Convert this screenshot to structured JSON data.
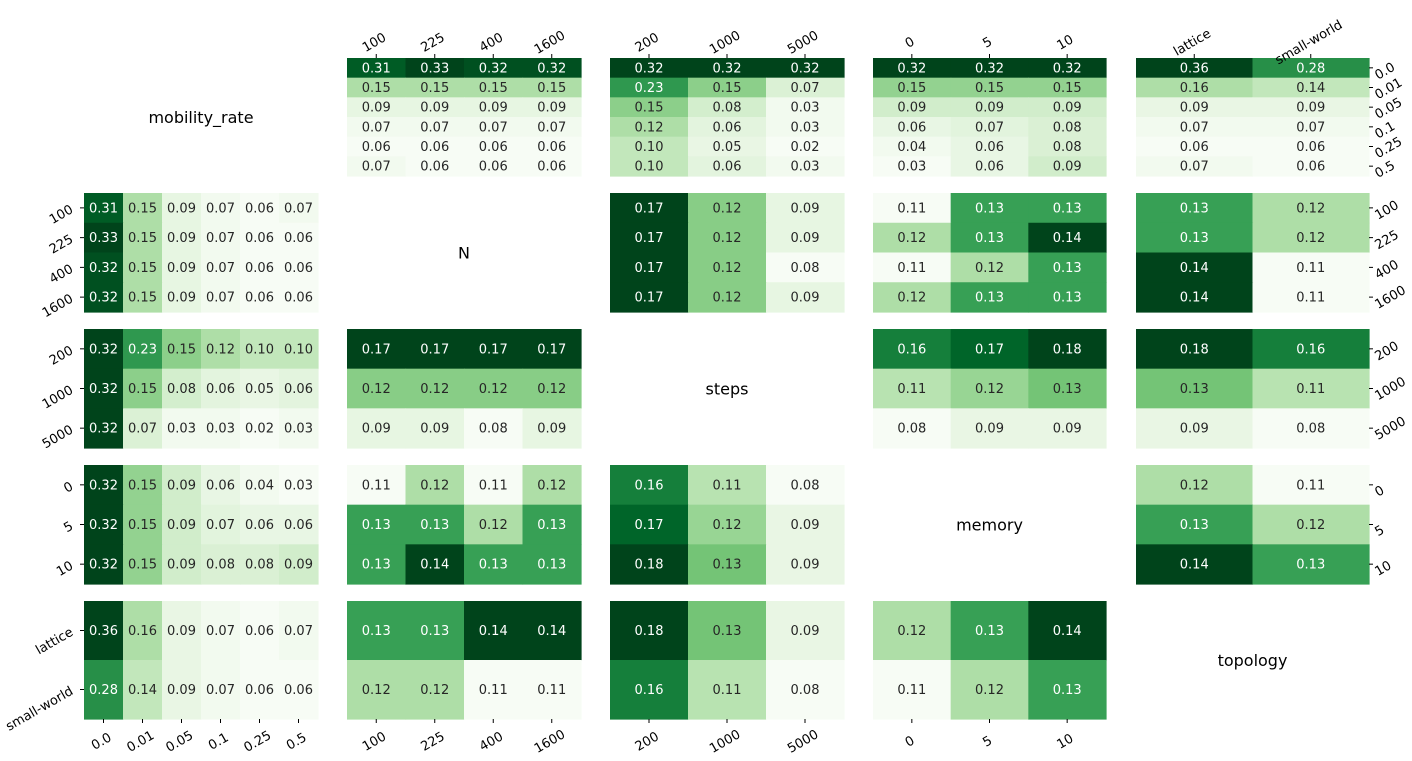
{
  "chart_data": {
    "type": "heatmap",
    "colormap": "Greens",
    "variables": [
      {
        "name": "mobility_rate",
        "levels": [
          "0.0",
          "0.01",
          "0.05",
          "0.1",
          "0.25",
          "0.5"
        ]
      },
      {
        "name": "N",
        "levels": [
          "100",
          "225",
          "400",
          "1600"
        ]
      },
      {
        "name": "steps",
        "levels": [
          "200",
          "1000",
          "5000"
        ]
      },
      {
        "name": "memory",
        "levels": [
          "0",
          "5",
          "10"
        ]
      },
      {
        "name": "topology",
        "levels": [
          "lattice",
          "small-world"
        ]
      }
    ],
    "panels": [
      {
        "row": 0,
        "col": 1,
        "values": [
          [
            "0.31",
            "0.33",
            "0.32",
            "0.32"
          ],
          [
            "0.15",
            "0.15",
            "0.15",
            "0.15"
          ],
          [
            "0.09",
            "0.09",
            "0.09",
            "0.09"
          ],
          [
            "0.07",
            "0.07",
            "0.07",
            "0.07"
          ],
          [
            "0.06",
            "0.06",
            "0.06",
            "0.06"
          ],
          [
            "0.07",
            "0.06",
            "0.06",
            "0.06"
          ]
        ]
      },
      {
        "row": 0,
        "col": 2,
        "values": [
          [
            "0.32",
            "0.32",
            "0.32"
          ],
          [
            "0.23",
            "0.15",
            "0.07"
          ],
          [
            "0.15",
            "0.08",
            "0.03"
          ],
          [
            "0.12",
            "0.06",
            "0.03"
          ],
          [
            "0.10",
            "0.05",
            "0.02"
          ],
          [
            "0.10",
            "0.06",
            "0.03"
          ]
        ]
      },
      {
        "row": 0,
        "col": 3,
        "values": [
          [
            "0.32",
            "0.32",
            "0.32"
          ],
          [
            "0.15",
            "0.15",
            "0.15"
          ],
          [
            "0.09",
            "0.09",
            "0.09"
          ],
          [
            "0.06",
            "0.07",
            "0.08"
          ],
          [
            "0.04",
            "0.06",
            "0.08"
          ],
          [
            "0.03",
            "0.06",
            "0.09"
          ]
        ]
      },
      {
        "row": 0,
        "col": 4,
        "values": [
          [
            "0.36",
            "0.28"
          ],
          [
            "0.16",
            "0.14"
          ],
          [
            "0.09",
            "0.09"
          ],
          [
            "0.07",
            "0.07"
          ],
          [
            "0.06",
            "0.06"
          ],
          [
            "0.07",
            "0.06"
          ]
        ]
      },
      {
        "row": 1,
        "col": 0,
        "values": [
          [
            "0.31",
            "0.15",
            "0.09",
            "0.07",
            "0.06",
            "0.07"
          ],
          [
            "0.33",
            "0.15",
            "0.09",
            "0.07",
            "0.06",
            "0.06"
          ],
          [
            "0.32",
            "0.15",
            "0.09",
            "0.07",
            "0.06",
            "0.06"
          ],
          [
            "0.32",
            "0.15",
            "0.09",
            "0.07",
            "0.06",
            "0.06"
          ]
        ]
      },
      {
        "row": 1,
        "col": 2,
        "values": [
          [
            "0.17",
            "0.12",
            "0.09"
          ],
          [
            "0.17",
            "0.12",
            "0.09"
          ],
          [
            "0.17",
            "0.12",
            "0.08"
          ],
          [
            "0.17",
            "0.12",
            "0.09"
          ]
        ]
      },
      {
        "row": 1,
        "col": 3,
        "values": [
          [
            "0.11",
            "0.13",
            "0.13"
          ],
          [
            "0.12",
            "0.13",
            "0.14"
          ],
          [
            "0.11",
            "0.12",
            "0.13"
          ],
          [
            "0.12",
            "0.13",
            "0.13"
          ]
        ]
      },
      {
        "row": 1,
        "col": 4,
        "values": [
          [
            "0.13",
            "0.12"
          ],
          [
            "0.13",
            "0.12"
          ],
          [
            "0.14",
            "0.11"
          ],
          [
            "0.14",
            "0.11"
          ]
        ]
      },
      {
        "row": 2,
        "col": 0,
        "values": [
          [
            "0.32",
            "0.23",
            "0.15",
            "0.12",
            "0.10",
            "0.10"
          ],
          [
            "0.32",
            "0.15",
            "0.08",
            "0.06",
            "0.05",
            "0.06"
          ],
          [
            "0.32",
            "0.07",
            "0.03",
            "0.03",
            "0.02",
            "0.03"
          ]
        ]
      },
      {
        "row": 2,
        "col": 1,
        "values": [
          [
            "0.17",
            "0.17",
            "0.17",
            "0.17"
          ],
          [
            "0.12",
            "0.12",
            "0.12",
            "0.12"
          ],
          [
            "0.09",
            "0.09",
            "0.08",
            "0.09"
          ]
        ]
      },
      {
        "row": 2,
        "col": 3,
        "values": [
          [
            "0.16",
            "0.17",
            "0.18"
          ],
          [
            "0.11",
            "0.12",
            "0.13"
          ],
          [
            "0.08",
            "0.09",
            "0.09"
          ]
        ]
      },
      {
        "row": 2,
        "col": 4,
        "values": [
          [
            "0.18",
            "0.16"
          ],
          [
            "0.13",
            "0.11"
          ],
          [
            "0.09",
            "0.08"
          ]
        ]
      },
      {
        "row": 3,
        "col": 0,
        "values": [
          [
            "0.32",
            "0.15",
            "0.09",
            "0.06",
            "0.04",
            "0.03"
          ],
          [
            "0.32",
            "0.15",
            "0.09",
            "0.07",
            "0.06",
            "0.06"
          ],
          [
            "0.32",
            "0.15",
            "0.09",
            "0.08",
            "0.08",
            "0.09"
          ]
        ]
      },
      {
        "row": 3,
        "col": 1,
        "values": [
          [
            "0.11",
            "0.12",
            "0.11",
            "0.12"
          ],
          [
            "0.13",
            "0.13",
            "0.12",
            "0.13"
          ],
          [
            "0.13",
            "0.14",
            "0.13",
            "0.13"
          ]
        ]
      },
      {
        "row": 3,
        "col": 2,
        "values": [
          [
            "0.16",
            "0.11",
            "0.08"
          ],
          [
            "0.17",
            "0.12",
            "0.09"
          ],
          [
            "0.18",
            "0.13",
            "0.09"
          ]
        ]
      },
      {
        "row": 3,
        "col": 4,
        "values": [
          [
            "0.12",
            "0.11"
          ],
          [
            "0.13",
            "0.12"
          ],
          [
            "0.14",
            "0.13"
          ]
        ]
      },
      {
        "row": 4,
        "col": 0,
        "values": [
          [
            "0.36",
            "0.16",
            "0.09",
            "0.07",
            "0.06",
            "0.07"
          ],
          [
            "0.28",
            "0.14",
            "0.09",
            "0.07",
            "0.06",
            "0.06"
          ]
        ]
      },
      {
        "row": 4,
        "col": 1,
        "values": [
          [
            "0.13",
            "0.13",
            "0.14",
            "0.14"
          ],
          [
            "0.12",
            "0.12",
            "0.11",
            "0.11"
          ]
        ]
      },
      {
        "row": 4,
        "col": 2,
        "values": [
          [
            "0.18",
            "0.13",
            "0.09"
          ],
          [
            "0.16",
            "0.11",
            "0.08"
          ]
        ]
      },
      {
        "row": 4,
        "col": 3,
        "values": [
          [
            "0.12",
            "0.13",
            "0.14"
          ],
          [
            "0.11",
            "0.12",
            "0.13"
          ]
        ]
      }
    ],
    "colors": {
      "light": "#f7fcf5",
      "dark": "#00441b",
      "text_dark": "#262626",
      "text_light": "#ffffff"
    }
  }
}
